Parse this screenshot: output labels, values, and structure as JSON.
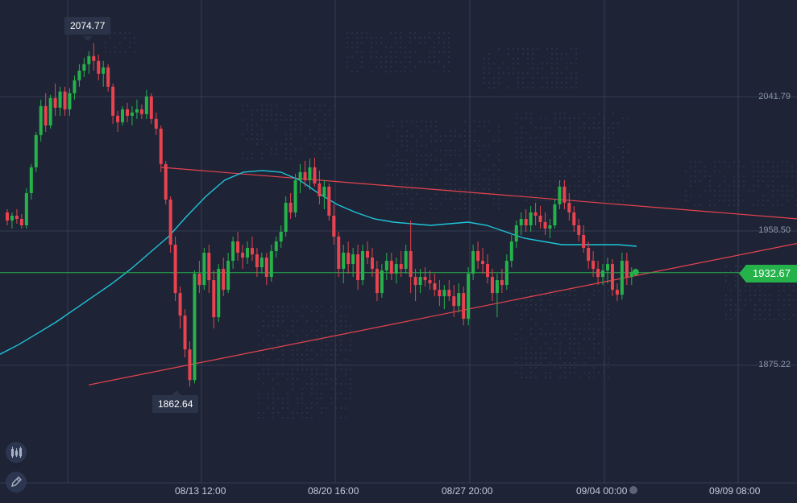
{
  "chart_data": {
    "type": "candlestick",
    "instrument": "",
    "x_ticks": [
      "08/13 12:00",
      "08/20 16:00",
      "08/27 20:00",
      "09/04 00:00",
      "09/09 08:00"
    ],
    "y_ticks": [
      "2041.79",
      "1958.50",
      "1875.22"
    ],
    "ylim": [
      1820,
      2110
    ],
    "high_label": "2074.77",
    "low_label": "1862.64",
    "current_price": "1932.67",
    "grid": true,
    "colors": {
      "up": "#26b24b",
      "down": "#e8434e",
      "moving_average": "#1fc4d8",
      "trendline": "#e8434e",
      "price_line": "#26b24b",
      "background": "#1e2436",
      "grid": "#353d52"
    },
    "series": [
      {
        "type": "candles",
        "ohlc": [
          [
            1970,
            1972,
            1962,
            1965
          ],
          [
            1965,
            1970,
            1960,
            1968
          ],
          [
            1968,
            1972,
            1963,
            1966
          ],
          [
            1966,
            1969,
            1960,
            1962
          ],
          [
            1962,
            1985,
            1960,
            1982
          ],
          [
            1982,
            2000,
            1978,
            1998
          ],
          [
            1998,
            2020,
            1995,
            2018
          ],
          [
            2018,
            2040,
            2014,
            2036
          ],
          [
            2036,
            2044,
            2020,
            2024
          ],
          [
            2024,
            2043,
            2022,
            2041
          ],
          [
            2041,
            2050,
            2030,
            2035
          ],
          [
            2035,
            2048,
            2030,
            2045
          ],
          [
            2045,
            2048,
            2030,
            2034
          ],
          [
            2034,
            2047,
            2030,
            2044
          ],
          [
            2044,
            2055,
            2040,
            2052
          ],
          [
            2052,
            2062,
            2048,
            2058
          ],
          [
            2058,
            2066,
            2054,
            2062
          ],
          [
            2062,
            2070,
            2056,
            2067
          ],
          [
            2067,
            2075,
            2058,
            2064
          ],
          [
            2064,
            2068,
            2052,
            2056
          ],
          [
            2056,
            2064,
            2048,
            2060
          ],
          [
            2060,
            2062,
            2045,
            2048
          ],
          [
            2048,
            2050,
            2025,
            2030
          ],
          [
            2030,
            2033,
            2020,
            2026
          ],
          [
            2026,
            2036,
            2024,
            2034
          ],
          [
            2034,
            2038,
            2026,
            2030
          ],
          [
            2030,
            2036,
            2024,
            2032
          ],
          [
            2032,
            2040,
            2028,
            2034
          ],
          [
            2034,
            2037,
            2028,
            2031
          ],
          [
            2031,
            2046,
            2028,
            2042
          ],
          [
            2042,
            2044,
            2025,
            2028
          ],
          [
            2028,
            2032,
            2018,
            2022
          ],
          [
            2022,
            2024,
            1995,
            2000
          ],
          [
            2000,
            2002,
            1975,
            1978
          ],
          [
            1978,
            1980,
            1945,
            1950
          ],
          [
            1950,
            1955,
            1915,
            1920
          ],
          [
            1920,
            1924,
            1898,
            1906
          ],
          [
            1906,
            1910,
            1880,
            1885
          ],
          [
            1885,
            1890,
            1862,
            1866
          ],
          [
            1866,
            1934,
            1864,
            1932
          ],
          [
            1932,
            1940,
            1920,
            1925
          ],
          [
            1925,
            1948,
            1922,
            1945
          ],
          [
            1945,
            1950,
            1920,
            1928
          ],
          [
            1928,
            1934,
            1898,
            1905
          ],
          [
            1905,
            1938,
            1902,
            1935
          ],
          [
            1935,
            1942,
            1918,
            1922
          ],
          [
            1922,
            1945,
            1920,
            1940
          ],
          [
            1940,
            1955,
            1935,
            1952
          ],
          [
            1952,
            1958,
            1940,
            1945
          ],
          [
            1945,
            1950,
            1935,
            1942
          ],
          [
            1942,
            1952,
            1938,
            1948
          ],
          [
            1948,
            1955,
            1940,
            1944
          ],
          [
            1944,
            1948,
            1930,
            1936
          ],
          [
            1936,
            1945,
            1932,
            1942
          ],
          [
            1942,
            1945,
            1925,
            1930
          ],
          [
            1930,
            1950,
            1927,
            1946
          ],
          [
            1946,
            1955,
            1942,
            1952
          ],
          [
            1952,
            1962,
            1948,
            1958
          ],
          [
            1958,
            1980,
            1955,
            1976
          ],
          [
            1976,
            1982,
            1966,
            1970
          ],
          [
            1970,
            1994,
            1967,
            1990
          ],
          [
            1990,
            2000,
            1982,
            1995
          ],
          [
            1995,
            2002,
            1986,
            1990
          ],
          [
            1990,
            2003,
            1984,
            1998
          ],
          [
            1998,
            2004,
            1986,
            1988
          ],
          [
            1988,
            1996,
            1975,
            1980
          ],
          [
            1980,
            1990,
            1972,
            1986
          ],
          [
            1986,
            1988,
            1965,
            1968
          ],
          [
            1968,
            1975,
            1950,
            1955
          ],
          [
            1955,
            1958,
            1930,
            1935
          ],
          [
            1935,
            1950,
            1926,
            1945
          ],
          [
            1945,
            1952,
            1932,
            1938
          ],
          [
            1938,
            1948,
            1930,
            1944
          ],
          [
            1944,
            1950,
            1922,
            1928
          ],
          [
            1928,
            1950,
            1925,
            1946
          ],
          [
            1946,
            1952,
            1938,
            1942
          ],
          [
            1942,
            1948,
            1930,
            1935
          ],
          [
            1935,
            1940,
            1915,
            1920
          ],
          [
            1920,
            1938,
            1917,
            1934
          ],
          [
            1934,
            1945,
            1928,
            1940
          ],
          [
            1940,
            1945,
            1928,
            1932
          ],
          [
            1932,
            1942,
            1926,
            1938
          ],
          [
            1938,
            1946,
            1930,
            1935
          ],
          [
            1935,
            1950,
            1932,
            1946
          ],
          [
            1946,
            1965,
            1920,
            1930
          ],
          [
            1930,
            1935,
            1915,
            1925
          ],
          [
            1925,
            1935,
            1920,
            1930
          ],
          [
            1930,
            1936,
            1924,
            1928
          ],
          [
            1928,
            1934,
            1922,
            1926
          ],
          [
            1926,
            1932,
            1918,
            1922
          ],
          [
            1922,
            1928,
            1912,
            1918
          ],
          [
            1918,
            1925,
            1910,
            1922
          ],
          [
            1922,
            1928,
            1915,
            1918
          ],
          [
            1918,
            1925,
            1905,
            1912
          ],
          [
            1912,
            1926,
            1908,
            1920
          ],
          [
            1920,
            1924,
            1900,
            1904
          ],
          [
            1904,
            1936,
            1900,
            1932
          ],
          [
            1932,
            1950,
            1928,
            1946
          ],
          [
            1946,
            1952,
            1935,
            1940
          ],
          [
            1940,
            1948,
            1932,
            1938
          ],
          [
            1938,
            1944,
            1926,
            1930
          ],
          [
            1930,
            1935,
            1915,
            1920
          ],
          [
            1920,
            1932,
            1905,
            1928
          ],
          [
            1928,
            1935,
            1920,
            1925
          ],
          [
            1925,
            1944,
            1922,
            1940
          ],
          [
            1940,
            1956,
            1936,
            1952
          ],
          [
            1952,
            1965,
            1948,
            1962
          ],
          [
            1962,
            1970,
            1956,
            1966
          ],
          [
            1966,
            1972,
            1958,
            1962
          ],
          [
            1962,
            1974,
            1958,
            1970
          ],
          [
            1970,
            1976,
            1962,
            1968
          ],
          [
            1968,
            1974,
            1960,
            1964
          ],
          [
            1964,
            1970,
            1956,
            1960
          ],
          [
            1960,
            1966,
            1954,
            1962
          ],
          [
            1962,
            1978,
            1960,
            1975
          ],
          [
            1975,
            1990,
            1972,
            1986
          ],
          [
            1986,
            1990,
            1972,
            1976
          ],
          [
            1976,
            1982,
            1965,
            1970
          ],
          [
            1970,
            1974,
            1958,
            1962
          ],
          [
            1962,
            1966,
            1952,
            1956
          ],
          [
            1956,
            1962,
            1945,
            1948
          ],
          [
            1948,
            1952,
            1935,
            1940
          ],
          [
            1940,
            1946,
            1930,
            1935
          ],
          [
            1935,
            1940,
            1925,
            1930
          ],
          [
            1930,
            1938,
            1925,
            1934
          ],
          [
            1934,
            1942,
            1926,
            1938
          ],
          [
            1938,
            1941,
            1918,
            1922
          ],
          [
            1922,
            1926,
            1915,
            1919
          ],
          [
            1919,
            1945,
            1916,
            1940
          ],
          [
            1940,
            1945,
            1925,
            1930
          ],
          [
            1930,
            1936,
            1925,
            1933
          ]
        ]
      },
      {
        "type": "moving-average",
        "values": [
          1882,
          1888,
          1895,
          1902,
          1910,
          1918,
          1926,
          1935,
          1945,
          1955,
          1968,
          1980,
          1990,
          1995,
          1996,
          1995,
          1990,
          1982,
          1975,
          1970,
          1966,
          1964,
          1963,
          1962,
          1963,
          1964,
          1962,
          1958,
          1954,
          1952,
          1950,
          1950,
          1950,
          1950,
          1949
        ]
      }
    ],
    "trendlines": [
      {
        "from": [
          32,
          1998
        ],
        "to": [
          148,
          1970
        ]
      },
      {
        "from": [
          17,
          1863
        ],
        "to": [
          148,
          1941
        ]
      }
    ]
  },
  "toolbar": {
    "chart_type_icon": "candlestick-icon",
    "draw_icon": "pencil-icon"
  }
}
